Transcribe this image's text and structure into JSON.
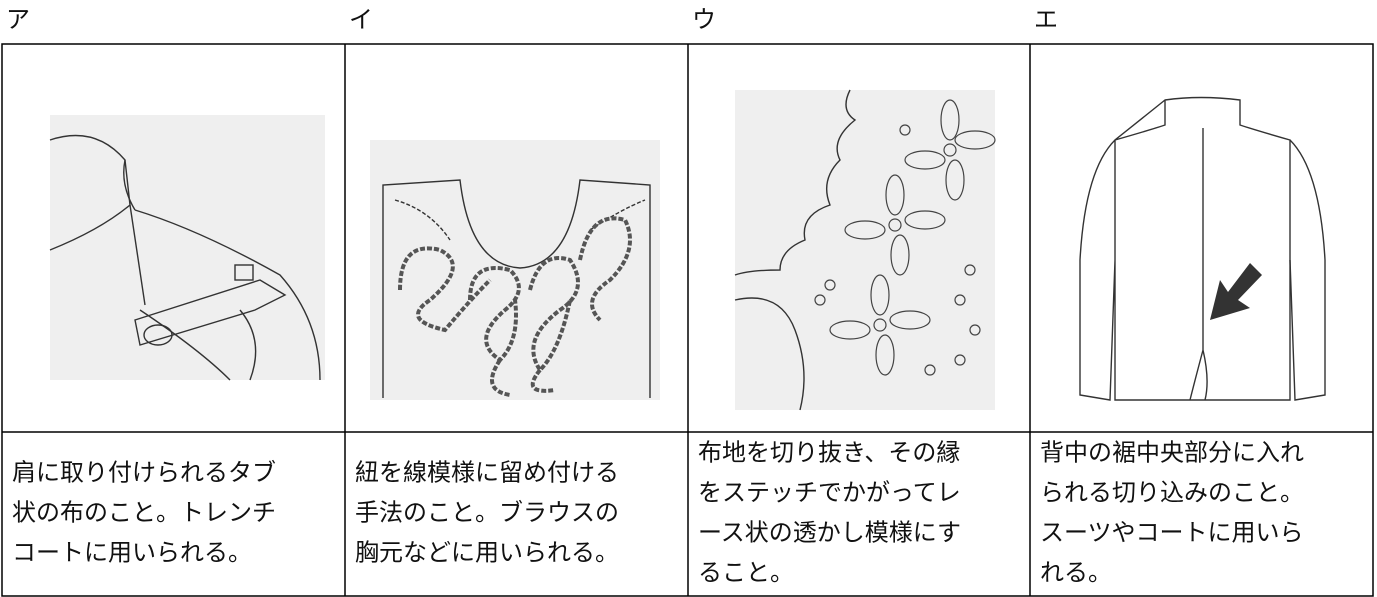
{
  "columns": [
    {
      "label": "ア",
      "lines": [
        "肩に取り付けられるタブ",
        "状の布のこと。トレンチ",
        "コートに用いられる。"
      ]
    },
    {
      "label": "イ",
      "lines": [
        "紐を線模様に留め付ける",
        "手法のこと。ブラウスの",
        "胸元などに用いられる。"
      ]
    },
    {
      "label": "ウ",
      "lines": [
        "布地を切り抜き、その縁",
        "をステッチでかがってレ",
        "ース状の透かし模様にす",
        "ること。"
      ]
    },
    {
      "label": "エ",
      "lines": [
        "背中の裾中央部分に入れ",
        "られる切り込みのこと。",
        "スーツやコートに用いら",
        "れる。"
      ]
    }
  ]
}
